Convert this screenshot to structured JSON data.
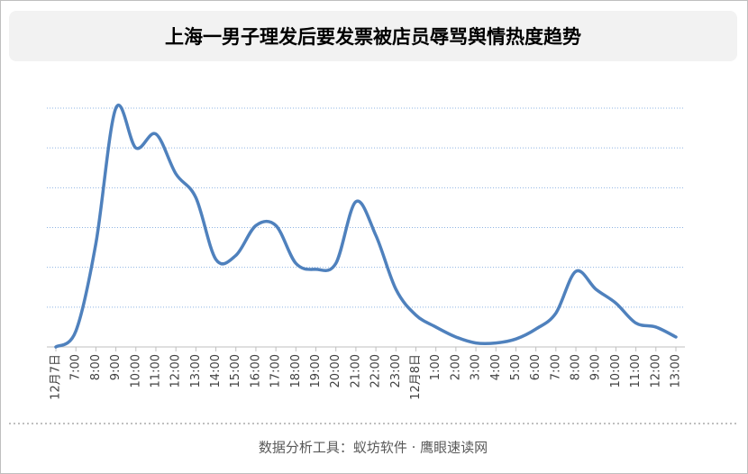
{
  "chart_data": {
    "type": "line",
    "title": "上海一男子理发后要发票被店员辱骂舆情热度趋势",
    "categories": [
      "12月7日",
      "7:00",
      "8:00",
      "9:00",
      "10:00",
      "11:00",
      "12:00",
      "13:00",
      "14:00",
      "15:00",
      "16:00",
      "17:00",
      "18:00",
      "19:00",
      "20:00",
      "21:00",
      "22:00",
      "23:00",
      "12月8日",
      "1:00",
      "2:00",
      "3:00",
      "4:00",
      "5:00",
      "6:00",
      "7:00",
      "8:00",
      "9:00",
      "10:00",
      "11:00",
      "12:00",
      "13:00"
    ],
    "values": [
      0,
      0.4,
      2.6,
      6.0,
      5.0,
      5.35,
      4.35,
      3.75,
      2.2,
      2.3,
      3.05,
      3.05,
      2.1,
      1.95,
      2.1,
      3.65,
      2.8,
      1.45,
      0.8,
      0.5,
      0.25,
      0.1,
      0.1,
      0.2,
      0.45,
      0.85,
      1.9,
      1.45,
      1.1,
      0.6,
      0.5,
      0.25
    ],
    "color": "#4f81bd",
    "ylim": [
      0,
      6.3
    ],
    "yticks": [
      1,
      2,
      3,
      4,
      5,
      6
    ],
    "grid": true,
    "footer": "数据分析工具：蚁坊软件 · 鹰眼速读网"
  }
}
